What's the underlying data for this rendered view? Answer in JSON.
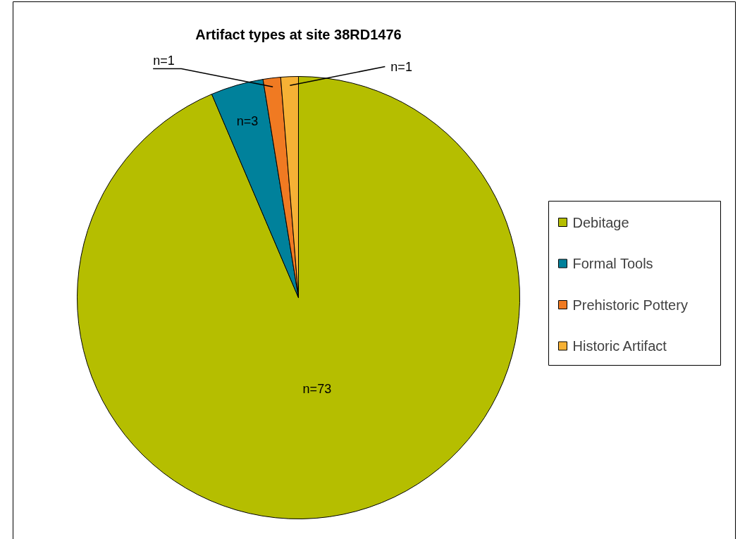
{
  "chart_data": {
    "type": "pie",
    "title": "Artifact types at site 38RD1476",
    "categories": [
      "Debitage",
      "Formal Tools",
      "Prehistoric Pottery",
      "Historic Artifact"
    ],
    "values": [
      73,
      3,
      1,
      1
    ],
    "colors": [
      "#b5be00",
      "#00819b",
      "#f07a22",
      "#f6b135"
    ],
    "value_labels": [
      "n=73",
      "n=3",
      "n=1",
      "n=1"
    ],
    "legend": "right"
  }
}
